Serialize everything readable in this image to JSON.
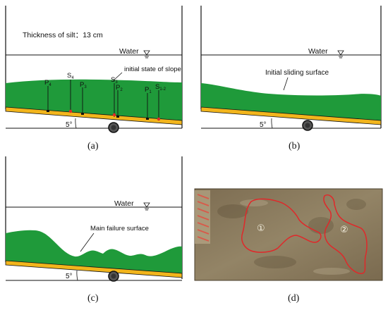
{
  "panel_a": {
    "thickness_note": "Thickness of silt：13 cm",
    "water_label": "Water",
    "slope_state_label": "initial state of slope",
    "angle_label": "5°",
    "sensors": [
      {
        "main": "P",
        "sub": "4"
      },
      {
        "main": "S",
        "sub": "4"
      },
      {
        "main": "P",
        "sub": "3"
      },
      {
        "main": "S",
        "sub": "3"
      },
      {
        "main": "P",
        "sub": "2"
      },
      {
        "main": "P",
        "sub": "1"
      },
      {
        "main": "S",
        "sub": "1-2"
      }
    ],
    "caption": "(a)"
  },
  "panel_b": {
    "water_label": "Water",
    "sliding_surface_label": "Initial sliding surface",
    "angle_label": "5°",
    "caption": "(b)"
  },
  "panel_c": {
    "water_label": "Water",
    "failure_surface_label": "Main failure surface",
    "angle_label": "5°",
    "caption": "(c)"
  },
  "panel_d": {
    "zone_1_label": "①",
    "zone_2_label": "②",
    "caption": "(d)"
  },
  "colors": {
    "silt": "#1f9a3a",
    "base": "#f2b51c",
    "outline": "#e0282a"
  }
}
